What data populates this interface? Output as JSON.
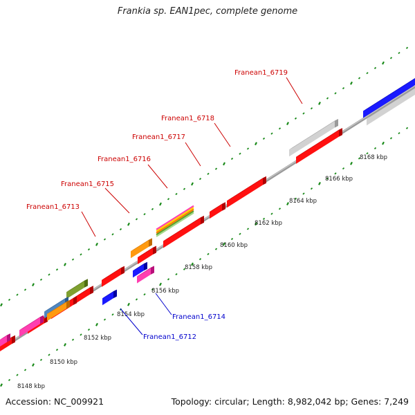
{
  "title": "Frankia sp. EAN1pec, complete genome",
  "footer": {
    "accession": "Accession: NC_009921",
    "summary": "Topology: circular; Length: 8,982,042 bp; Genes: 7,249"
  },
  "colors": {
    "forward_label": "#cc0000",
    "reverse_label": "#0000cc",
    "backbone": "#8c8c8c",
    "ticks": "#1a8a1a"
  },
  "ticks": [
    "8148 kbp",
    "8150 kbp",
    "8152 kbp",
    "8154 kbp",
    "8156 kbp",
    "8158 kbp",
    "8160 kbp",
    "8162 kbp",
    "8164 kbp",
    "8166 kbp",
    "8168 kbp"
  ],
  "forward_labels": [
    "Franean1_6713",
    "Franean1_6715",
    "Franean1_6716",
    "Franean1_6717",
    "Franean1_6718",
    "Franean1_6719"
  ],
  "reverse_labels": [
    "Franean1_6712",
    "Franean1_6714"
  ]
}
